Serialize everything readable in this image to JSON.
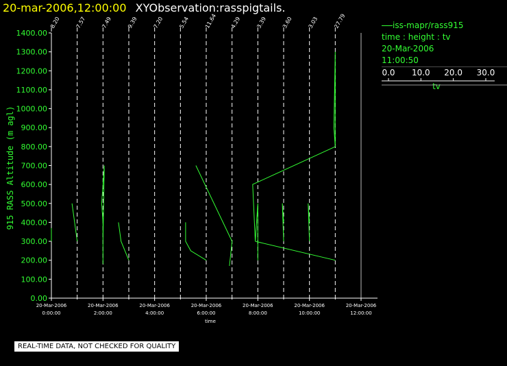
{
  "header": {
    "date": "20-mar-2006,12:00:00",
    "title": "XYObservation:rasspigtails."
  },
  "colors": {
    "data": "#33ff33",
    "axis": "#ffffff",
    "background": "#000000",
    "header_date": "#ffff00"
  },
  "legend": {
    "series": "iss-mapr/rass915",
    "description": "time : height : tv",
    "date": "20-Mar-2006",
    "time": "11:00:50",
    "scale_ticks": [
      "0.0",
      "10.0",
      "20.0",
      "30.0"
    ],
    "scale_label": "tv"
  },
  "footer": {
    "text": "REAL-TIME DATA, NOT CHECKED FOR QUALITY"
  },
  "chart_data": {
    "type": "line",
    "ylabel": "915 RASS Altitude (m agl)",
    "xlabel": "time",
    "xlim": [
      0,
      12
    ],
    "ylim": [
      0,
      1400
    ],
    "yticks": [
      "0.00",
      "100.00",
      "200.00",
      "300.00",
      "400.00",
      "500.00",
      "600.00",
      "700.00",
      "800.00",
      "900.00",
      "1000.00",
      "1100.00",
      "1200.00",
      "1300.00",
      "1400.00"
    ],
    "xticks": [
      {
        "date": "20-Mar-2006",
        "time": "0:00:00"
      },
      {
        "date": "20-Mar-2006",
        "time": "2:00:00"
      },
      {
        "date": "20-Mar-2006",
        "time": "4:00:00"
      },
      {
        "date": "20-Mar-2006",
        "time": "6:00:00"
      },
      {
        "date": "20-Mar-2006",
        "time": "8:00:00"
      },
      {
        "date": "20-Mar-2006",
        "time": "10:00:00"
      },
      {
        "date": "20-Mar-2006",
        "time": "12:00:00"
      }
    ],
    "observations": [
      {
        "time": 0,
        "label": "8.20"
      },
      {
        "time": 1,
        "label": "7.57"
      },
      {
        "time": 2,
        "label": "7.49"
      },
      {
        "time": 3,
        "label": "9.39"
      },
      {
        "time": 4,
        "label": "7.20"
      },
      {
        "time": 5,
        "label": "5.54"
      },
      {
        "time": 6,
        "label": "11.64"
      },
      {
        "time": 7,
        "label": "4.29"
      },
      {
        "time": 8,
        "label": "3.39"
      },
      {
        "time": 9,
        "label": "3.60"
      },
      {
        "time": 10,
        "label": "3.03"
      },
      {
        "time": 11,
        "label": "27.79"
      }
    ],
    "profiles": [
      [
        [
          0.0,
          300
        ],
        [
          0.0,
          370
        ],
        [
          0.0,
          300
        ]
      ],
      [
        [
          0.8,
          500
        ],
        [
          1.0,
          300
        ]
      ],
      [
        [
          2.0,
          180
        ],
        [
          2.0,
          400
        ],
        [
          1.95,
          500
        ],
        [
          2.05,
          700
        ],
        [
          2.0,
          300
        ],
        [
          2.0,
          180
        ]
      ],
      [
        [
          2.6,
          400
        ],
        [
          2.7,
          300
        ],
        [
          3.0,
          200
        ]
      ],
      [
        [
          5.2,
          400
        ],
        [
          5.2,
          300
        ],
        [
          5.4,
          250
        ],
        [
          6.0,
          200
        ]
      ],
      [
        [
          5.6,
          700
        ],
        [
          7.0,
          300
        ],
        [
          6.9,
          170
        ]
      ],
      [
        [
          8.0,
          200
        ],
        [
          8.0,
          500
        ],
        [
          7.9,
          300
        ],
        [
          7.8,
          600
        ],
        [
          11.0,
          800
        ],
        [
          11.0,
          1300
        ],
        [
          10.95,
          900
        ],
        [
          11.0,
          800
        ],
        [
          11.0,
          1000
        ]
      ],
      [
        [
          7.9,
          300
        ],
        [
          11.0,
          200
        ]
      ],
      [
        [
          9.0,
          300
        ],
        [
          8.95,
          500
        ],
        [
          9.0,
          400
        ]
      ],
      [
        [
          10.0,
          300
        ],
        [
          9.95,
          500
        ],
        [
          10.0,
          400
        ]
      ]
    ]
  }
}
